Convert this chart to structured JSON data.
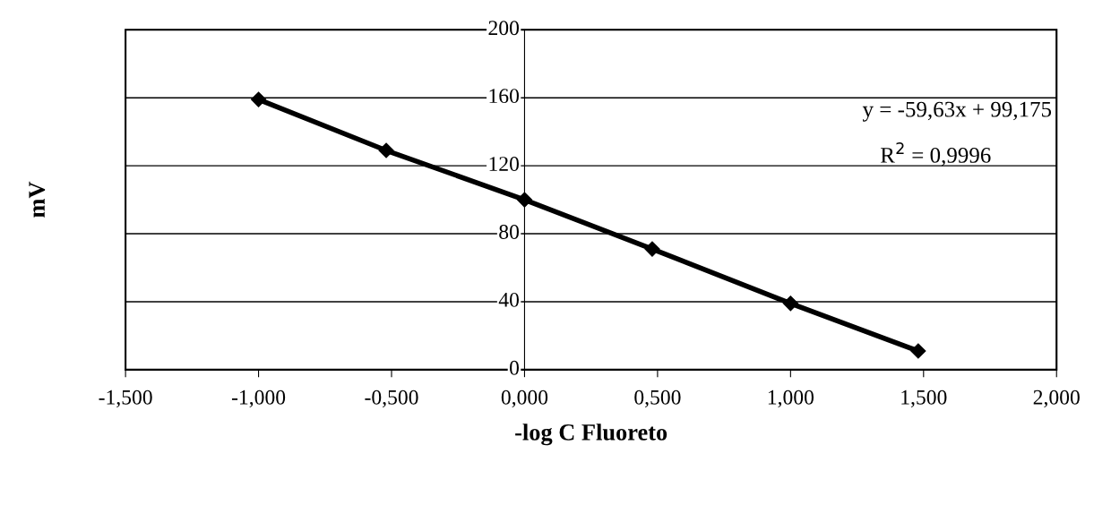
{
  "chart_data": {
    "type": "line",
    "xlabel": "-log C Fluoreto",
    "ylabel": "mV",
    "x": [
      -1.0,
      -0.52,
      0.0,
      0.48,
      1.0,
      1.48
    ],
    "series": [
      {
        "color": "#000000",
        "values": [
          159,
          129,
          100,
          71,
          39,
          11
        ]
      }
    ],
    "marker": "diamond",
    "line_style": "solid",
    "xlim": [
      -1.5,
      2.0
    ],
    "xticks": [
      {
        "value": -1.5,
        "label": "-1,500"
      },
      {
        "value": -1.0,
        "label": "-1,000"
      },
      {
        "value": -0.5,
        "label": "-0,500"
      },
      {
        "value": 0.0,
        "label": "0,000"
      },
      {
        "value": 0.5,
        "label": "0,500"
      },
      {
        "value": 1.0,
        "label": "1,000"
      },
      {
        "value": 1.5,
        "label": "1,500"
      },
      {
        "value": 2.0,
        "label": "2,000"
      }
    ],
    "ylim": [
      0,
      200
    ],
    "yticks": [
      0,
      40,
      80,
      120,
      160,
      200
    ],
    "grid": "y",
    "legend": false,
    "annotations": [
      "y = -59,63x + 99,175",
      "R$^{2}$ = 0,9996"
    ]
  }
}
